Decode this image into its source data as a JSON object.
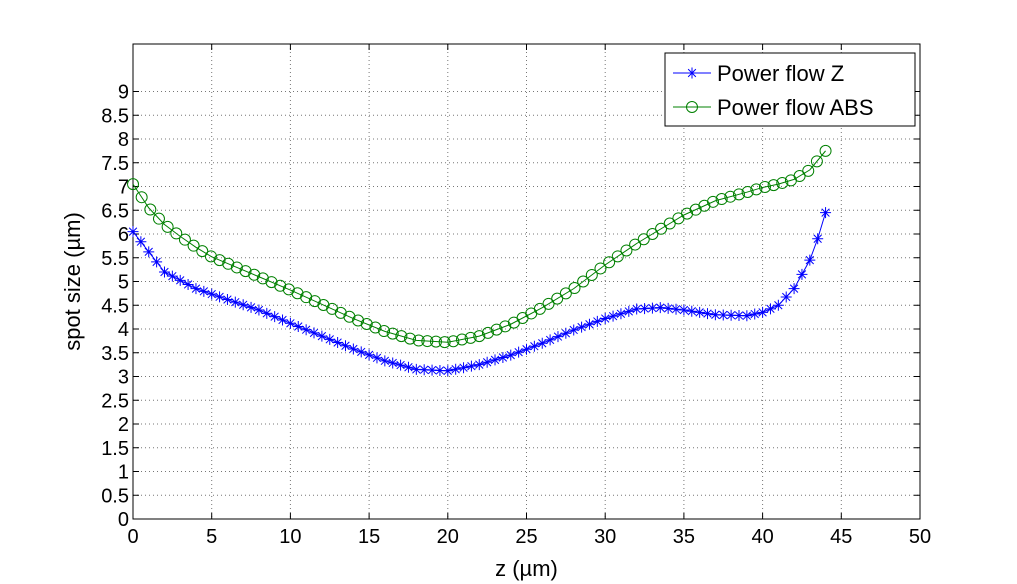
{
  "chart_data": {
    "type": "line",
    "title": "",
    "xlabel": "z (µm)",
    "ylabel": "spot size (µm)",
    "xlim": [
      0,
      50
    ],
    "ylim": [
      0,
      10
    ],
    "xticks": [
      "0",
      "5",
      "10",
      "15",
      "20",
      "25",
      "30",
      "35",
      "40",
      "45",
      "50"
    ],
    "yticks": [
      "0",
      "0.5",
      "1",
      "1.5",
      "2",
      "2.5",
      "3",
      "3.5",
      "4",
      "4.5",
      "5",
      "5.5",
      "6",
      "6.5",
      "7",
      "7.5",
      "8",
      "8.5",
      "9"
    ],
    "grid": true,
    "legend_position": "top-right",
    "series": [
      {
        "name": "Power flow Z",
        "color": "#0000ff",
        "marker": "asterisk",
        "x": [
          0,
          2,
          4,
          6,
          8,
          10,
          12,
          14,
          16,
          18,
          20,
          22,
          24,
          26,
          28,
          30,
          32,
          33.5,
          35,
          37,
          39,
          40,
          41,
          42,
          43,
          43.5,
          44
        ],
        "y": [
          6.05,
          5.2,
          4.85,
          4.62,
          4.4,
          4.12,
          3.85,
          3.58,
          3.33,
          3.15,
          3.12,
          3.25,
          3.45,
          3.7,
          3.98,
          4.22,
          4.42,
          4.45,
          4.4,
          4.3,
          4.28,
          4.35,
          4.5,
          4.85,
          5.45,
          5.9,
          6.45
        ]
      },
      {
        "name": "Power flow ABS",
        "color": "#008000",
        "marker": "circle",
        "x": [
          0,
          0.5,
          1,
          2,
          3,
          4,
          5,
          6,
          8,
          10,
          12,
          14,
          16,
          18,
          20,
          22,
          24,
          26,
          28,
          30,
          32,
          34,
          35,
          37,
          39,
          40,
          41,
          42,
          43,
          43.5,
          44
        ],
        "y": [
          7.05,
          6.8,
          6.55,
          6.2,
          5.95,
          5.72,
          5.52,
          5.38,
          5.1,
          4.82,
          4.52,
          4.22,
          3.95,
          3.76,
          3.72,
          3.85,
          4.1,
          4.45,
          4.85,
          5.35,
          5.8,
          6.2,
          6.4,
          6.7,
          6.88,
          6.98,
          7.05,
          7.15,
          7.35,
          7.55,
          7.75
        ]
      }
    ]
  }
}
